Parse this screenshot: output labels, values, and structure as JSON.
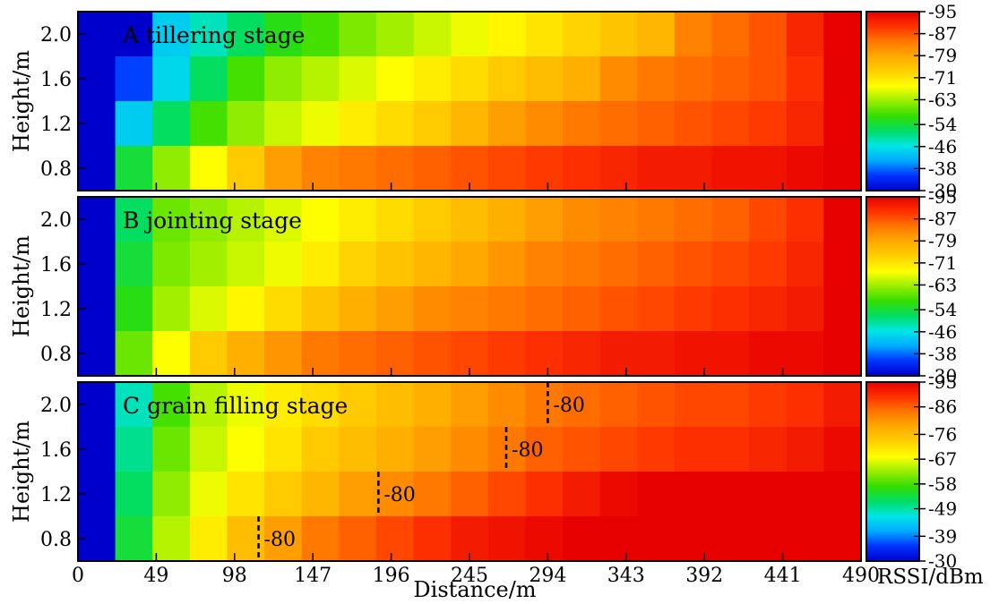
{
  "chart_data": [
    {
      "type": "heatmap",
      "title": "A tillering stage",
      "ylabel": "Height/m",
      "y_ticks": [
        "2.0",
        "1.6",
        "1.2",
        "0.8"
      ],
      "rows": [
        {
          "height": 2.0,
          "rssi": [
            -30,
            -30,
            -44,
            -48,
            -52,
            -56,
            -58,
            -61,
            -63,
            -65,
            -67,
            -69,
            -71,
            -73,
            -75,
            -77,
            -83,
            -85,
            -87,
            -91,
            -95
          ]
        },
        {
          "height": 1.6,
          "rssi": [
            -30,
            -36,
            -45,
            -52,
            -58,
            -62,
            -64,
            -66,
            -68,
            -70,
            -72,
            -74,
            -76,
            -78,
            -82,
            -84,
            -85,
            -86,
            -87,
            -90,
            -95
          ]
        },
        {
          "height": 1.2,
          "rssi": [
            -30,
            -44,
            -52,
            -58,
            -62,
            -65,
            -67,
            -70,
            -72,
            -74,
            -77,
            -80,
            -82,
            -84,
            -85,
            -86,
            -87,
            -88,
            -89,
            -91,
            -95
          ]
        },
        {
          "height": 0.8,
          "rssi": [
            -30,
            -54,
            -62,
            -68,
            -74,
            -80,
            -83,
            -84,
            -85,
            -86,
            -87,
            -88,
            -89,
            -90,
            -91,
            -92,
            -92,
            -93,
            -93,
            -94,
            -95
          ]
        }
      ],
      "colorbar": {
        "ticks": [
          "-95",
          "-87",
          "-79",
          "-71",
          "-63",
          "-54",
          "-46",
          "-38",
          "-30"
        ],
        "min": -95,
        "max": -30
      }
    },
    {
      "type": "heatmap",
      "title": "B jointing stage",
      "ylabel": "Height/m",
      "y_ticks": [
        "2.0",
        "1.6",
        "1.2",
        "0.8"
      ],
      "rows": [
        {
          "height": 2.0,
          "rssi": [
            -30,
            -52,
            -60,
            -62,
            -64,
            -66,
            -68,
            -70,
            -72,
            -74,
            -76,
            -78,
            -80,
            -82,
            -83,
            -84,
            -85,
            -86,
            -88,
            -90,
            -95
          ]
        },
        {
          "height": 1.6,
          "rssi": [
            -30,
            -54,
            -61,
            -63,
            -65,
            -67,
            -70,
            -73,
            -75,
            -77,
            -79,
            -81,
            -83,
            -84,
            -85,
            -86,
            -87,
            -88,
            -89,
            -91,
            -95
          ]
        },
        {
          "height": 1.2,
          "rssi": [
            -30,
            -56,
            -63,
            -66,
            -69,
            -72,
            -75,
            -78,
            -80,
            -82,
            -83,
            -84,
            -85,
            -86,
            -87,
            -88,
            -89,
            -90,
            -91,
            -92,
            -95
          ]
        },
        {
          "height": 0.8,
          "rssi": [
            -30,
            -60,
            -68,
            -74,
            -78,
            -81,
            -84,
            -85,
            -86,
            -87,
            -88,
            -89,
            -90,
            -91,
            -92,
            -92,
            -93,
            -93,
            -94,
            -94,
            -95
          ]
        }
      ],
      "colorbar": {
        "ticks": [
          "-95",
          "-87",
          "-79",
          "-71",
          "-63",
          "-54",
          "-46",
          "-38",
          "-30"
        ],
        "min": -95,
        "max": -30
      }
    },
    {
      "type": "heatmap",
      "title": "C grain filling stage",
      "ylabel": "Height/m",
      "xlabel": "Distance/m",
      "x_ticks": [
        "0",
        "49",
        "98",
        "147",
        "196",
        "245",
        "294",
        "343",
        "392",
        "441",
        "490"
      ],
      "xlim": [
        0,
        490
      ],
      "y_ticks": [
        "2.0",
        "1.6",
        "1.2",
        "0.8"
      ],
      "rows": [
        {
          "height": 2.0,
          "rssi": [
            -30,
            -48,
            -58,
            -64,
            -67,
            -70,
            -72,
            -74,
            -76,
            -78,
            -80,
            -82,
            -84,
            -85,
            -86,
            -87,
            -88,
            -88,
            -89,
            -90,
            -92
          ]
        },
        {
          "height": 1.6,
          "rssi": [
            -30,
            -50,
            -60,
            -65,
            -68,
            -71,
            -74,
            -76,
            -78,
            -80,
            -82,
            -84,
            -86,
            -87,
            -88,
            -89,
            -90,
            -90,
            -91,
            -92,
            -94
          ]
        },
        {
          "height": 1.2,
          "rssi": [
            -30,
            -52,
            -62,
            -67,
            -71,
            -74,
            -77,
            -80,
            -82,
            -84,
            -86,
            -88,
            -90,
            -92,
            -94,
            -95,
            -95,
            -95,
            -95,
            -95,
            -95
          ]
        },
        {
          "height": 0.8,
          "rssi": [
            -30,
            -54,
            -64,
            -70,
            -76,
            -80,
            -84,
            -86,
            -88,
            -90,
            -92,
            -93,
            -94,
            -95,
            -95,
            -95,
            -95,
            -95,
            -95,
            -95,
            -95
          ]
        }
      ],
      "annotations": [
        {
          "height": 2.0,
          "distance": 294,
          "label": "-80"
        },
        {
          "height": 1.6,
          "distance": 268,
          "label": "-80"
        },
        {
          "height": 1.2,
          "distance": 188,
          "label": "-80"
        },
        {
          "height": 0.8,
          "distance": 113,
          "label": "-80"
        }
      ],
      "colorbar": {
        "label": "RSSI/dBm",
        "ticks": [
          "-95",
          "-86",
          "-76",
          "-67",
          "-58",
          "-49",
          "-39",
          "-30"
        ],
        "min": -95,
        "max": -30
      }
    }
  ],
  "colormap": [
    "#0000cc",
    "#0033ff",
    "#00aaff",
    "#00e5e5",
    "#00dd66",
    "#33dd00",
    "#99ee00",
    "#ffff00",
    "#ffd000",
    "#ffaa00",
    "#ff7700",
    "#ff3300",
    "#e60000"
  ]
}
